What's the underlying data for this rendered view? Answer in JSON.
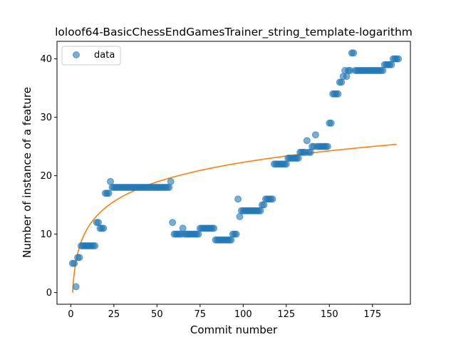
{
  "chart_data": {
    "type": "scatter",
    "title": "loloof64-BasicChessEndGamesTrainer_string_template-logarithm",
    "xlabel": "Commit number",
    "ylabel": "Number of instance of a feature",
    "xlim": [
      -8,
      197
    ],
    "ylim": [
      -2,
      43
    ],
    "xticks": [
      0,
      25,
      50,
      75,
      100,
      125,
      150,
      175
    ],
    "yticks": [
      0,
      10,
      20,
      30,
      40
    ],
    "grid": false,
    "legend": {
      "position": "top-left",
      "entries": [
        "data"
      ]
    },
    "colors": {
      "points": "#1f77b4",
      "fit": "#ff7f0e"
    },
    "series": [
      {
        "name": "data",
        "kind": "scatter",
        "points": [
          [
            1,
            5
          ],
          [
            2,
            5
          ],
          [
            3,
            1
          ],
          [
            4,
            6
          ],
          [
            5,
            6
          ],
          [
            6,
            8
          ],
          [
            7,
            8
          ],
          [
            8,
            8
          ],
          [
            9,
            8
          ],
          [
            10,
            8
          ],
          [
            11,
            8
          ],
          [
            12,
            8
          ],
          [
            13,
            8
          ],
          [
            14,
            8
          ],
          [
            15,
            12
          ],
          [
            16,
            12
          ],
          [
            17,
            11
          ],
          [
            18,
            11
          ],
          [
            19,
            11
          ],
          [
            20,
            17
          ],
          [
            21,
            17
          ],
          [
            22,
            17
          ],
          [
            23,
            19
          ],
          [
            24,
            18
          ],
          [
            25,
            18
          ],
          [
            26,
            18
          ],
          [
            27,
            18
          ],
          [
            28,
            18
          ],
          [
            29,
            18
          ],
          [
            30,
            18
          ],
          [
            31,
            18
          ],
          [
            32,
            18
          ],
          [
            33,
            18
          ],
          [
            34,
            18
          ],
          [
            35,
            18
          ],
          [
            36,
            18
          ],
          [
            37,
            18
          ],
          [
            38,
            18
          ],
          [
            39,
            18
          ],
          [
            40,
            18
          ],
          [
            41,
            18
          ],
          [
            42,
            18
          ],
          [
            43,
            18
          ],
          [
            44,
            18
          ],
          [
            45,
            18
          ],
          [
            46,
            18
          ],
          [
            47,
            18
          ],
          [
            48,
            18
          ],
          [
            49,
            18
          ],
          [
            50,
            18
          ],
          [
            51,
            18
          ],
          [
            52,
            18
          ],
          [
            53,
            18
          ],
          [
            54,
            18
          ],
          [
            55,
            18
          ],
          [
            56,
            18
          ],
          [
            57,
            18
          ],
          [
            58,
            19
          ],
          [
            59,
            12
          ],
          [
            60,
            10
          ],
          [
            61,
            10
          ],
          [
            62,
            10
          ],
          [
            63,
            10
          ],
          [
            64,
            10
          ],
          [
            65,
            11
          ],
          [
            66,
            10
          ],
          [
            67,
            10
          ],
          [
            68,
            10
          ],
          [
            69,
            10
          ],
          [
            70,
            10
          ],
          [
            71,
            10
          ],
          [
            72,
            10
          ],
          [
            73,
            10
          ],
          [
            74,
            10
          ],
          [
            75,
            11
          ],
          [
            76,
            11
          ],
          [
            77,
            11
          ],
          [
            78,
            11
          ],
          [
            79,
            11
          ],
          [
            80,
            11
          ],
          [
            81,
            11
          ],
          [
            82,
            11
          ],
          [
            83,
            11
          ],
          [
            84,
            9
          ],
          [
            85,
            9
          ],
          [
            86,
            9
          ],
          [
            87,
            9
          ],
          [
            88,
            9
          ],
          [
            89,
            9
          ],
          [
            90,
            9
          ],
          [
            91,
            9
          ],
          [
            92,
            9
          ],
          [
            93,
            9
          ],
          [
            94,
            10
          ],
          [
            95,
            10
          ],
          [
            96,
            10
          ],
          [
            97,
            16
          ],
          [
            98,
            13
          ],
          [
            99,
            14
          ],
          [
            100,
            14
          ],
          [
            101,
            14
          ],
          [
            102,
            14
          ],
          [
            103,
            14
          ],
          [
            104,
            14
          ],
          [
            105,
            14
          ],
          [
            106,
            14
          ],
          [
            107,
            14
          ],
          [
            108,
            14
          ],
          [
            109,
            14
          ],
          [
            110,
            14
          ],
          [
            111,
            15
          ],
          [
            112,
            15
          ],
          [
            113,
            16
          ],
          [
            114,
            16
          ],
          [
            115,
            16
          ],
          [
            116,
            16
          ],
          [
            117,
            16
          ],
          [
            118,
            22
          ],
          [
            119,
            22
          ],
          [
            120,
            22
          ],
          [
            121,
            22
          ],
          [
            122,
            22
          ],
          [
            123,
            22
          ],
          [
            124,
            22
          ],
          [
            125,
            22
          ],
          [
            126,
            23
          ],
          [
            127,
            23
          ],
          [
            128,
            23
          ],
          [
            129,
            23
          ],
          [
            130,
            23
          ],
          [
            131,
            23
          ],
          [
            132,
            23
          ],
          [
            133,
            24
          ],
          [
            134,
            24
          ],
          [
            135,
            24
          ],
          [
            136,
            24
          ],
          [
            137,
            26
          ],
          [
            138,
            24
          ],
          [
            139,
            24
          ],
          [
            140,
            25
          ],
          [
            141,
            25
          ],
          [
            142,
            27
          ],
          [
            143,
            25
          ],
          [
            144,
            25
          ],
          [
            145,
            25
          ],
          [
            146,
            25
          ],
          [
            147,
            25
          ],
          [
            148,
            25
          ],
          [
            149,
            25
          ],
          [
            150,
            29
          ],
          [
            151,
            29
          ],
          [
            152,
            34
          ],
          [
            153,
            34
          ],
          [
            154,
            34
          ],
          [
            155,
            34
          ],
          [
            156,
            36
          ],
          [
            157,
            36
          ],
          [
            158,
            37
          ],
          [
            159,
            38
          ],
          [
            160,
            37
          ],
          [
            161,
            38
          ],
          [
            162,
            38
          ],
          [
            163,
            41
          ],
          [
            164,
            41
          ],
          [
            165,
            38
          ],
          [
            166,
            38
          ],
          [
            167,
            38
          ],
          [
            168,
            38
          ],
          [
            169,
            38
          ],
          [
            170,
            38
          ],
          [
            171,
            38
          ],
          [
            172,
            38
          ],
          [
            173,
            38
          ],
          [
            174,
            38
          ],
          [
            175,
            38
          ],
          [
            176,
            38
          ],
          [
            177,
            38
          ],
          [
            178,
            38
          ],
          [
            179,
            38
          ],
          [
            180,
            38
          ],
          [
            181,
            38
          ],
          [
            182,
            39
          ],
          [
            183,
            39
          ],
          [
            184,
            39
          ],
          [
            185,
            39
          ],
          [
            186,
            39
          ],
          [
            187,
            40
          ],
          [
            188,
            40
          ],
          [
            189,
            40
          ],
          [
            190,
            40
          ]
        ]
      },
      {
        "kind": "line",
        "model": "logarithmic",
        "coefficients": {
          "a": 0,
          "b": 4.84
        },
        "x_range": [
          1,
          189
        ]
      }
    ]
  }
}
